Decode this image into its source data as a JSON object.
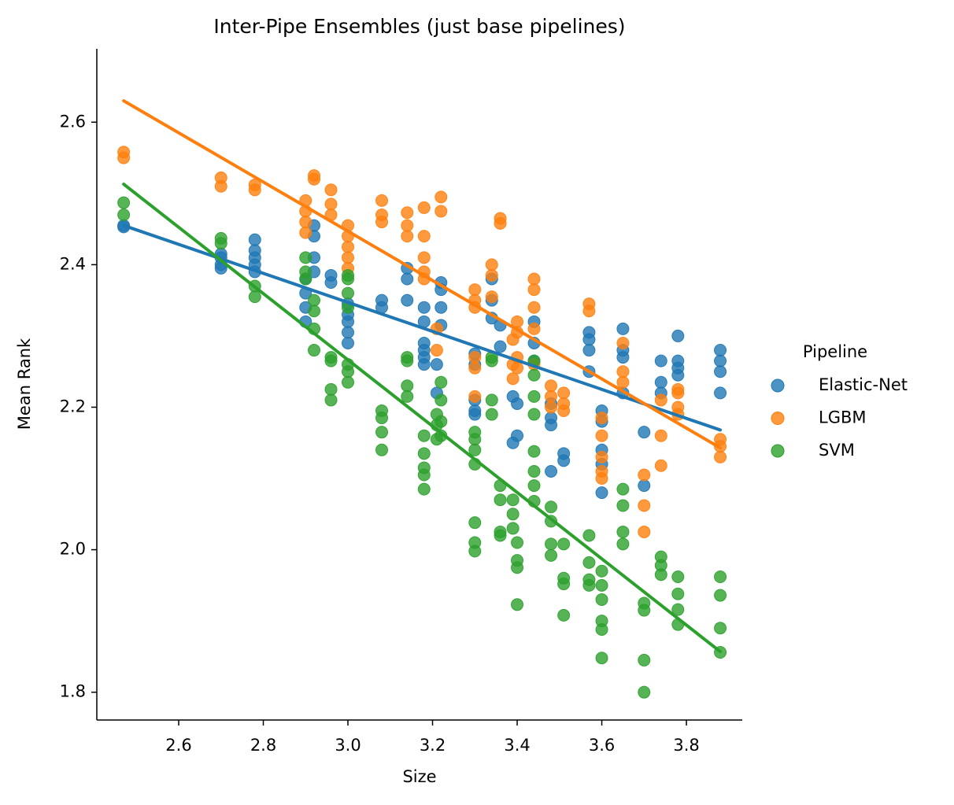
{
  "chart_data": {
    "type": "scatter",
    "title": "Inter-Pipe Ensembles (just base pipelines)",
    "x_label": "Size",
    "y_label": "Mean Rank",
    "legend_title": "Pipeline",
    "legend_position": "right",
    "xlim": [
      2.4065,
      3.932
    ],
    "ylim": [
      1.761,
      2.703
    ],
    "xticks": [
      2.6,
      2.8,
      {
        "value": 3,
        "label": "3.0"
      },
      3.2,
      3.4,
      3.6,
      3.8
    ],
    "yticks": [
      1.8,
      {
        "value": 2,
        "label": "2.0"
      },
      2.2,
      2.4,
      2.6
    ],
    "series": [
      {
        "name": "Elastic-Net",
        "color": "#1f77b4",
        "x": [
          2.47,
          2.47,
          2.7,
          2.7,
          2.7,
          2.7,
          2.78,
          2.78,
          2.78,
          2.78,
          2.78,
          2.9,
          2.9,
          2.9,
          2.9,
          2.92,
          2.92,
          2.92,
          2.92,
          2.96,
          2.96,
          3.0,
          3.0,
          3.0,
          3.0,
          3.0,
          3.08,
          3.08,
          3.14,
          3.14,
          3.14,
          3.18,
          3.18,
          3.18,
          3.18,
          3.18,
          3.18,
          3.21,
          3.21,
          3.22,
          3.22,
          3.22,
          3.22,
          3.3,
          3.3,
          3.3,
          3.3,
          3.3,
          3.34,
          3.34,
          3.34,
          3.36,
          3.36,
          3.39,
          3.39,
          3.4,
          3.4,
          3.44,
          3.44,
          3.44,
          3.48,
          3.48,
          3.48,
          3.48,
          3.51,
          3.51,
          3.57,
          3.57,
          3.57,
          3.57,
          3.6,
          3.6,
          3.6,
          3.6,
          3.6,
          3.65,
          3.65,
          3.65,
          3.65,
          3.7,
          3.7,
          3.74,
          3.74,
          3.74,
          3.78,
          3.78,
          3.78,
          3.78,
          3.88,
          3.88,
          3.88,
          3.88
        ],
        "values": [
          2.455,
          2.453,
          2.415,
          2.4,
          2.395,
          2.41,
          2.435,
          2.42,
          2.41,
          2.4,
          2.39,
          2.38,
          2.36,
          2.34,
          2.32,
          2.455,
          2.44,
          2.41,
          2.39,
          2.385,
          2.375,
          2.345,
          2.33,
          2.32,
          2.305,
          2.29,
          2.35,
          2.34,
          2.395,
          2.38,
          2.35,
          2.34,
          2.32,
          2.29,
          2.28,
          2.27,
          2.26,
          2.26,
          2.22,
          2.375,
          2.365,
          2.34,
          2.315,
          2.275,
          2.26,
          2.21,
          2.195,
          2.19,
          2.38,
          2.35,
          2.325,
          2.315,
          2.285,
          2.215,
          2.15,
          2.205,
          2.16,
          2.32,
          2.29,
          2.265,
          2.205,
          2.185,
          2.175,
          2.11,
          2.135,
          2.125,
          2.305,
          2.295,
          2.28,
          2.25,
          2.195,
          2.18,
          2.14,
          2.12,
          2.08,
          2.31,
          2.28,
          2.27,
          2.22,
          2.165,
          2.09,
          2.265,
          2.235,
          2.22,
          2.3,
          2.265,
          2.255,
          2.245,
          2.28,
          2.265,
          2.25,
          2.22
        ],
        "fit": {
          "x": [
            2.47,
            3.88
          ],
          "values": [
            2.455,
            2.168
          ]
        }
      },
      {
        "name": "LGBM",
        "color": "#ff7f0e",
        "x": [
          2.47,
          2.47,
          2.7,
          2.7,
          2.78,
          2.78,
          2.9,
          2.9,
          2.9,
          2.9,
          2.92,
          2.92,
          2.96,
          2.96,
          2.96,
          3.0,
          3.0,
          3.0,
          3.0,
          3.0,
          3.08,
          3.08,
          3.08,
          3.14,
          3.14,
          3.14,
          3.18,
          3.18,
          3.18,
          3.18,
          3.18,
          3.21,
          3.21,
          3.22,
          3.22,
          3.3,
          3.3,
          3.3,
          3.3,
          3.3,
          3.3,
          3.34,
          3.34,
          3.34,
          3.36,
          3.36,
          3.39,
          3.39,
          3.39,
          3.4,
          3.4,
          3.4,
          3.4,
          3.44,
          3.44,
          3.44,
          3.44,
          3.44,
          3.48,
          3.48,
          3.48,
          3.51,
          3.51,
          3.51,
          3.57,
          3.57,
          3.6,
          3.6,
          3.6,
          3.6,
          3.6,
          3.65,
          3.65,
          3.65,
          3.7,
          3.7,
          3.7,
          3.74,
          3.74,
          3.74,
          3.78,
          3.78,
          3.78,
          3.78,
          3.88,
          3.88,
          3.88
        ],
        "values": [
          2.558,
          2.55,
          2.522,
          2.51,
          2.512,
          2.505,
          2.49,
          2.475,
          2.46,
          2.445,
          2.525,
          2.52,
          2.505,
          2.485,
          2.47,
          2.455,
          2.44,
          2.425,
          2.41,
          2.395,
          2.49,
          2.47,
          2.46,
          2.473,
          2.455,
          2.44,
          2.48,
          2.44,
          2.41,
          2.39,
          2.38,
          2.31,
          2.28,
          2.495,
          2.475,
          2.365,
          2.35,
          2.34,
          2.27,
          2.255,
          2.215,
          2.4,
          2.385,
          2.355,
          2.465,
          2.458,
          2.295,
          2.26,
          2.24,
          2.32,
          2.305,
          2.27,
          2.255,
          2.38,
          2.365,
          2.34,
          2.31,
          2.26,
          2.23,
          2.215,
          2.2,
          2.22,
          2.205,
          2.195,
          2.345,
          2.335,
          2.185,
          2.16,
          2.13,
          2.11,
          2.1,
          2.29,
          2.25,
          2.235,
          2.105,
          2.062,
          2.025,
          2.21,
          2.16,
          2.118,
          2.225,
          2.22,
          2.2,
          2.19,
          2.155,
          2.145,
          2.13
        ],
        "fit": {
          "x": [
            2.47,
            3.88
          ],
          "values": [
            2.63,
            2.143
          ]
        }
      },
      {
        "name": "SVM",
        "color": "#2ca02c",
        "x": [
          2.47,
          2.47,
          2.7,
          2.7,
          2.78,
          2.78,
          2.9,
          2.9,
          2.9,
          2.92,
          2.92,
          2.92,
          2.92,
          2.96,
          2.96,
          2.96,
          2.96,
          3.0,
          3.0,
          3.0,
          3.0,
          3.0,
          3.0,
          3.0,
          3.08,
          3.08,
          3.08,
          3.08,
          3.14,
          3.14,
          3.14,
          3.14,
          3.18,
          3.18,
          3.18,
          3.18,
          3.18,
          3.21,
          3.21,
          3.21,
          3.22,
          3.22,
          3.22,
          3.22,
          3.3,
          3.3,
          3.3,
          3.3,
          3.3,
          3.3,
          3.3,
          3.34,
          3.34,
          3.34,
          3.34,
          3.36,
          3.36,
          3.36,
          3.36,
          3.39,
          3.39,
          3.39,
          3.4,
          3.4,
          3.4,
          3.4,
          3.44,
          3.44,
          3.44,
          3.44,
          3.44,
          3.44,
          3.44,
          3.44,
          3.48,
          3.48,
          3.48,
          3.48,
          3.51,
          3.51,
          3.51,
          3.51,
          3.57,
          3.57,
          3.57,
          3.57,
          3.6,
          3.6,
          3.6,
          3.6,
          3.6,
          3.6,
          3.65,
          3.65,
          3.65,
          3.65,
          3.7,
          3.7,
          3.7,
          3.7,
          3.74,
          3.74,
          3.74,
          3.78,
          3.78,
          3.78,
          3.78,
          3.88,
          3.88,
          3.88,
          3.88
        ],
        "values": [
          2.487,
          2.47,
          2.437,
          2.43,
          2.37,
          2.355,
          2.41,
          2.39,
          2.38,
          2.35,
          2.335,
          2.31,
          2.28,
          2.27,
          2.265,
          2.225,
          2.21,
          2.385,
          2.38,
          2.36,
          2.34,
          2.26,
          2.25,
          2.235,
          2.195,
          2.185,
          2.165,
          2.14,
          2.27,
          2.265,
          2.23,
          2.215,
          2.16,
          2.135,
          2.115,
          2.105,
          2.085,
          2.19,
          2.175,
          2.155,
          2.235,
          2.21,
          2.18,
          2.16,
          2.165,
          2.155,
          2.14,
          2.12,
          2.038,
          2.01,
          1.998,
          2.27,
          2.265,
          2.21,
          2.19,
          2.09,
          2.07,
          2.025,
          2.02,
          2.07,
          2.05,
          2.03,
          2.01,
          1.985,
          1.975,
          1.923,
          2.265,
          2.245,
          2.215,
          2.19,
          2.138,
          2.11,
          2.09,
          2.068,
          2.06,
          2.04,
          2.008,
          1.992,
          2.008,
          1.96,
          1.952,
          1.908,
          2.02,
          1.982,
          1.958,
          1.95,
          1.97,
          1.95,
          1.93,
          1.9,
          1.888,
          1.848,
          2.085,
          2.062,
          2.025,
          2.008,
          1.925,
          1.915,
          1.845,
          1.8,
          1.99,
          1.978,
          1.965,
          1.962,
          1.938,
          1.916,
          1.895,
          1.962,
          1.936,
          1.89,
          1.856
        ],
        "fit": {
          "x": [
            2.47,
            3.88
          ],
          "values": [
            2.513,
            1.857
          ]
        }
      }
    ]
  }
}
